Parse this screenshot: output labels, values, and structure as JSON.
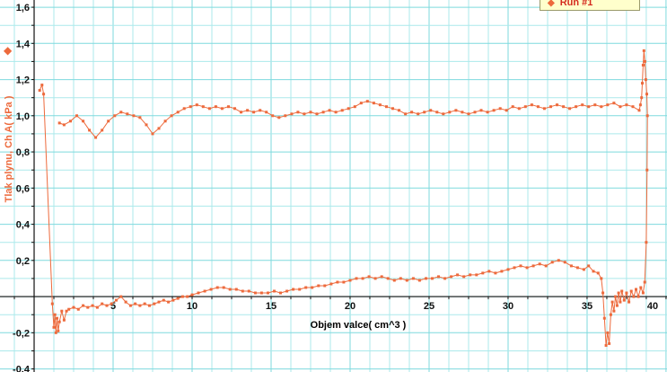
{
  "icons": {
    "diamond": "◆"
  },
  "chart_data": {
    "type": "scatter",
    "title": "",
    "xlabel": "Objem valce( cm^3 )",
    "ylabel": "Tlak plynu, Ch A( kPa )",
    "xlim": [
      -2.16,
      40.06
    ],
    "ylim": [
      -0.417,
      1.64
    ],
    "grid": {
      "on": true,
      "x_step": 1.25,
      "y_step": 0.1,
      "x_major": 5,
      "y_major": 0.2,
      "minor_color": "#abe9eb",
      "major_color": "#7edade"
    },
    "axis_color": "#111111",
    "y_ticks": [
      {
        "v": 1.6,
        "label": "1,6"
      },
      {
        "v": 1.4,
        "label": "1,4"
      },
      {
        "v": 1.2,
        "label": "1,2"
      },
      {
        "v": 1.0,
        "label": "1,0"
      },
      {
        "v": 0.8,
        "label": "0,8"
      },
      {
        "v": 0.6,
        "label": "0,6"
      },
      {
        "v": 0.4,
        "label": "0,4"
      },
      {
        "v": 0.2,
        "label": "0,2"
      },
      {
        "v": -0.2,
        "label": "-0,2"
      },
      {
        "v": -0.4,
        "label": "-0,4"
      }
    ],
    "x_ticks": [
      {
        "v": 5,
        "label": "5"
      },
      {
        "v": 10,
        "label": "10"
      },
      {
        "v": 15,
        "label": "15"
      },
      {
        "v": 20,
        "label": "20"
      },
      {
        "v": 25,
        "label": "25"
      },
      {
        "v": 30,
        "label": "30"
      },
      {
        "v": 35,
        "label": "35"
      },
      {
        "v": 40,
        "label": "40"
      }
    ],
    "legend": {
      "position": "top-right",
      "entries": [
        "Run #1"
      ]
    },
    "series": [
      {
        "name": "Run #1",
        "color": "#ed6a3c",
        "marker": "square",
        "points": [
          [
            0.35,
            1.14
          ],
          [
            0.5,
            1.17
          ],
          [
            0.6,
            1.12
          ],
          [
            1.15,
            -0.04
          ],
          [
            1.25,
            -0.17
          ],
          [
            1.32,
            -0.1
          ],
          [
            1.38,
            -0.2
          ],
          [
            1.45,
            -0.12
          ],
          [
            1.52,
            -0.19
          ],
          [
            1.6,
            -0.14
          ],
          [
            1.75,
            -0.08
          ],
          [
            1.9,
            -0.13
          ],
          [
            2.05,
            -0.08
          ],
          [
            2.2,
            -0.07
          ],
          [
            2.5,
            -0.06
          ],
          [
            2.8,
            -0.07
          ],
          [
            3.1,
            -0.05
          ],
          [
            3.4,
            -0.06
          ],
          [
            3.7,
            -0.05
          ],
          [
            4.0,
            -0.06
          ],
          [
            4.3,
            -0.04
          ],
          [
            4.6,
            -0.05
          ],
          [
            4.9,
            -0.04
          ],
          [
            5.2,
            -0.02
          ],
          [
            5.5,
            0.0
          ],
          [
            5.8,
            -0.03
          ],
          [
            6.1,
            -0.05
          ],
          [
            6.4,
            -0.04
          ],
          [
            6.7,
            -0.05
          ],
          [
            7.0,
            -0.04
          ],
          [
            7.3,
            -0.05
          ],
          [
            7.6,
            -0.04
          ],
          [
            7.9,
            -0.03
          ],
          [
            8.2,
            -0.02
          ],
          [
            8.5,
            -0.03
          ],
          [
            8.8,
            -0.02
          ],
          [
            9.1,
            -0.01
          ],
          [
            9.4,
            0.0
          ],
          [
            9.7,
            0.0
          ],
          [
            10.0,
            0.01
          ],
          [
            10.4,
            0.02
          ],
          [
            10.8,
            0.03
          ],
          [
            11.2,
            0.04
          ],
          [
            11.6,
            0.05
          ],
          [
            12.0,
            0.05
          ],
          [
            12.4,
            0.04
          ],
          [
            12.8,
            0.04
          ],
          [
            13.2,
            0.03
          ],
          [
            13.6,
            0.03
          ],
          [
            14.0,
            0.02
          ],
          [
            14.4,
            0.02
          ],
          [
            14.8,
            0.02
          ],
          [
            15.2,
            0.03
          ],
          [
            15.6,
            0.02
          ],
          [
            16.0,
            0.03
          ],
          [
            16.4,
            0.04
          ],
          [
            16.8,
            0.04
          ],
          [
            17.2,
            0.05
          ],
          [
            17.6,
            0.05
          ],
          [
            18.0,
            0.06
          ],
          [
            18.4,
            0.06
          ],
          [
            18.8,
            0.07
          ],
          [
            19.2,
            0.08
          ],
          [
            19.6,
            0.08
          ],
          [
            20.0,
            0.09
          ],
          [
            20.4,
            0.1
          ],
          [
            20.8,
            0.1
          ],
          [
            21.2,
            0.11
          ],
          [
            21.6,
            0.1
          ],
          [
            22.0,
            0.11
          ],
          [
            22.4,
            0.1
          ],
          [
            22.8,
            0.09
          ],
          [
            23.2,
            0.1
          ],
          [
            23.6,
            0.09
          ],
          [
            24.0,
            0.1
          ],
          [
            24.4,
            0.09
          ],
          [
            24.8,
            0.1
          ],
          [
            25.2,
            0.1
          ],
          [
            25.6,
            0.11
          ],
          [
            26.0,
            0.1
          ],
          [
            26.4,
            0.11
          ],
          [
            26.8,
            0.12
          ],
          [
            27.2,
            0.11
          ],
          [
            27.6,
            0.12
          ],
          [
            28.0,
            0.12
          ],
          [
            28.4,
            0.13
          ],
          [
            28.8,
            0.14
          ],
          [
            29.2,
            0.13
          ],
          [
            29.6,
            0.14
          ],
          [
            30.0,
            0.15
          ],
          [
            30.4,
            0.16
          ],
          [
            30.8,
            0.17
          ],
          [
            31.2,
            0.16
          ],
          [
            31.6,
            0.17
          ],
          [
            32.0,
            0.18
          ],
          [
            32.4,
            0.17
          ],
          [
            32.8,
            0.19
          ],
          [
            33.2,
            0.2
          ],
          [
            33.6,
            0.19
          ],
          [
            34.0,
            0.17
          ],
          [
            34.4,
            0.16
          ],
          [
            34.8,
            0.15
          ],
          [
            35.1,
            0.17
          ],
          [
            35.4,
            0.14
          ],
          [
            35.7,
            0.13
          ],
          [
            35.9,
            0.1
          ],
          [
            36.0,
            0.02
          ],
          [
            36.1,
            -0.12
          ],
          [
            36.2,
            -0.27
          ],
          [
            36.3,
            -0.2
          ],
          [
            36.4,
            -0.26
          ],
          [
            36.5,
            -0.1
          ],
          [
            36.6,
            -0.03
          ],
          [
            36.7,
            -0.08
          ],
          [
            36.8,
            0.0
          ],
          [
            36.9,
            -0.05
          ],
          [
            37.0,
            0.02
          ],
          [
            37.1,
            -0.03
          ],
          [
            37.2,
            0.03
          ],
          [
            37.35,
            -0.02
          ],
          [
            37.5,
            0.02
          ],
          [
            37.65,
            -0.03
          ],
          [
            37.8,
            0.03
          ],
          [
            37.95,
            0.0
          ],
          [
            38.1,
            0.04
          ],
          [
            38.25,
            0.0
          ],
          [
            38.4,
            0.05
          ],
          [
            38.55,
            0.02
          ],
          [
            38.65,
            0.08
          ],
          [
            38.75,
            0.3
          ],
          [
            38.8,
            0.7
          ],
          [
            38.82,
            1.0
          ],
          [
            38.78,
            1.12
          ],
          [
            38.72,
            1.2
          ],
          [
            38.66,
            1.3
          ],
          [
            38.6,
            1.36
          ],
          [
            38.55,
            1.28
          ],
          [
            38.5,
            1.18
          ],
          [
            38.45,
            1.1
          ],
          [
            38.38,
            1.06
          ],
          [
            38.3,
            1.03
          ],
          [
            37.9,
            1.05
          ],
          [
            37.5,
            1.06
          ],
          [
            37.1,
            1.05
          ],
          [
            36.7,
            1.07
          ],
          [
            36.3,
            1.06
          ],
          [
            35.9,
            1.05
          ],
          [
            35.5,
            1.06
          ],
          [
            35.1,
            1.05
          ],
          [
            34.7,
            1.06
          ],
          [
            34.3,
            1.05
          ],
          [
            33.9,
            1.04
          ],
          [
            33.5,
            1.05
          ],
          [
            33.1,
            1.06
          ],
          [
            32.7,
            1.05
          ],
          [
            32.3,
            1.04
          ],
          [
            31.9,
            1.05
          ],
          [
            31.5,
            1.06
          ],
          [
            31.1,
            1.05
          ],
          [
            30.7,
            1.04
          ],
          [
            30.3,
            1.05
          ],
          [
            29.9,
            1.03
          ],
          [
            29.5,
            1.04
          ],
          [
            29.1,
            1.03
          ],
          [
            28.7,
            1.02
          ],
          [
            28.3,
            1.03
          ],
          [
            27.9,
            1.02
          ],
          [
            27.5,
            1.01
          ],
          [
            27.1,
            1.02
          ],
          [
            26.7,
            1.03
          ],
          [
            26.3,
            1.02
          ],
          [
            25.9,
            1.01
          ],
          [
            25.5,
            1.02
          ],
          [
            25.1,
            1.03
          ],
          [
            24.7,
            1.02
          ],
          [
            24.3,
            1.01
          ],
          [
            23.9,
            1.02
          ],
          [
            23.5,
            1.01
          ],
          [
            23.1,
            1.03
          ],
          [
            22.7,
            1.04
          ],
          [
            22.3,
            1.05
          ],
          [
            21.9,
            1.06
          ],
          [
            21.5,
            1.07
          ],
          [
            21.1,
            1.08
          ],
          [
            20.7,
            1.07
          ],
          [
            20.3,
            1.05
          ],
          [
            19.9,
            1.04
          ],
          [
            19.5,
            1.03
          ],
          [
            19.1,
            1.02
          ],
          [
            18.7,
            1.03
          ],
          [
            18.3,
            1.02
          ],
          [
            17.9,
            1.01
          ],
          [
            17.5,
            1.02
          ],
          [
            17.1,
            1.01
          ],
          [
            16.7,
            1.02
          ],
          [
            16.3,
            1.01
          ],
          [
            15.9,
            1.0
          ],
          [
            15.5,
            0.99
          ],
          [
            15.1,
            1.0
          ],
          [
            14.7,
            1.02
          ],
          [
            14.3,
            1.03
          ],
          [
            13.9,
            1.02
          ],
          [
            13.5,
            1.03
          ],
          [
            13.1,
            1.02
          ],
          [
            12.7,
            1.04
          ],
          [
            12.3,
            1.05
          ],
          [
            11.9,
            1.04
          ],
          [
            11.5,
            1.05
          ],
          [
            11.1,
            1.04
          ],
          [
            10.7,
            1.05
          ],
          [
            10.3,
            1.06
          ],
          [
            9.9,
            1.05
          ],
          [
            9.5,
            1.04
          ],
          [
            9.1,
            1.02
          ],
          [
            8.7,
            1.0
          ],
          [
            8.3,
            0.97
          ],
          [
            7.9,
            0.93
          ],
          [
            7.5,
            0.9
          ],
          [
            7.1,
            0.95
          ],
          [
            6.7,
            0.99
          ],
          [
            6.3,
            1.0
          ],
          [
            5.9,
            1.01
          ],
          [
            5.5,
            1.02
          ],
          [
            5.1,
            1.0
          ],
          [
            4.7,
            0.97
          ],
          [
            4.3,
            0.92
          ],
          [
            3.9,
            0.88
          ],
          [
            3.5,
            0.92
          ],
          [
            3.1,
            0.97
          ],
          [
            2.7,
            1.0
          ],
          [
            2.3,
            0.97
          ],
          [
            1.9,
            0.95
          ],
          [
            1.6,
            0.96
          ]
        ]
      }
    ]
  }
}
